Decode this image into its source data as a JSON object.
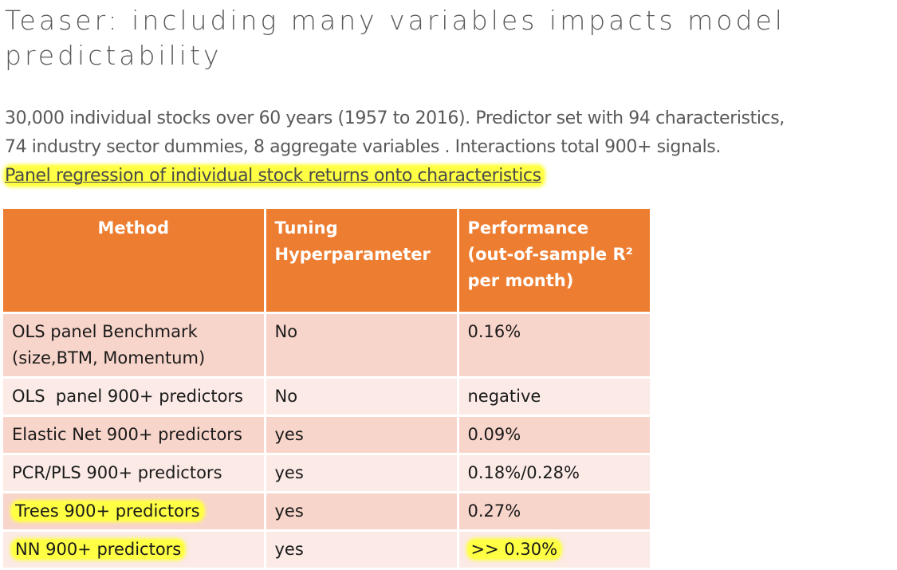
{
  "slide": {
    "title": "Teaser: including many variables impacts model predictability",
    "paragraph_line1": "30,000 individual stocks over 60 years (1957 to 2016). Predictor set  with 94 characteristics,",
    "paragraph_line2": "74 industry sector dummies, 8 aggregate variables . Interactions total 900+  signals.",
    "highlighted_link": "Panel regression of individual stock returns onto characteristics"
  },
  "table": {
    "headers": {
      "method": "Method",
      "tuning": "Tuning Hyperparameter",
      "performance": "Performance (out-of-sample R² per month)"
    },
    "rows": [
      {
        "method": "OLS panel Benchmark (size,BTM, Momentum)",
        "tuning": "No",
        "performance": "0.16%"
      },
      {
        "method": "OLS  panel 900+ predictors",
        "tuning": "No",
        "performance": "negative"
      },
      {
        "method": "Elastic Net 900+ predictors",
        "tuning": "yes",
        "performance": "0.09%"
      },
      {
        "method": "PCR/PLS 900+ predictors",
        "tuning": "yes",
        "performance": "0.18%/0.28%"
      },
      {
        "method": "Trees 900+ predictors",
        "tuning": "yes",
        "performance": "0.27%"
      },
      {
        "method": "NN 900+ predictors",
        "tuning": "yes",
        "performance": ">> 0.30%"
      }
    ]
  },
  "colors": {
    "header_orange": "#ed7d31",
    "row_dark": "#f8d5cb",
    "row_light": "#fbeae5",
    "highlight_yellow": "#ffff44",
    "text_gray": "#595959"
  }
}
